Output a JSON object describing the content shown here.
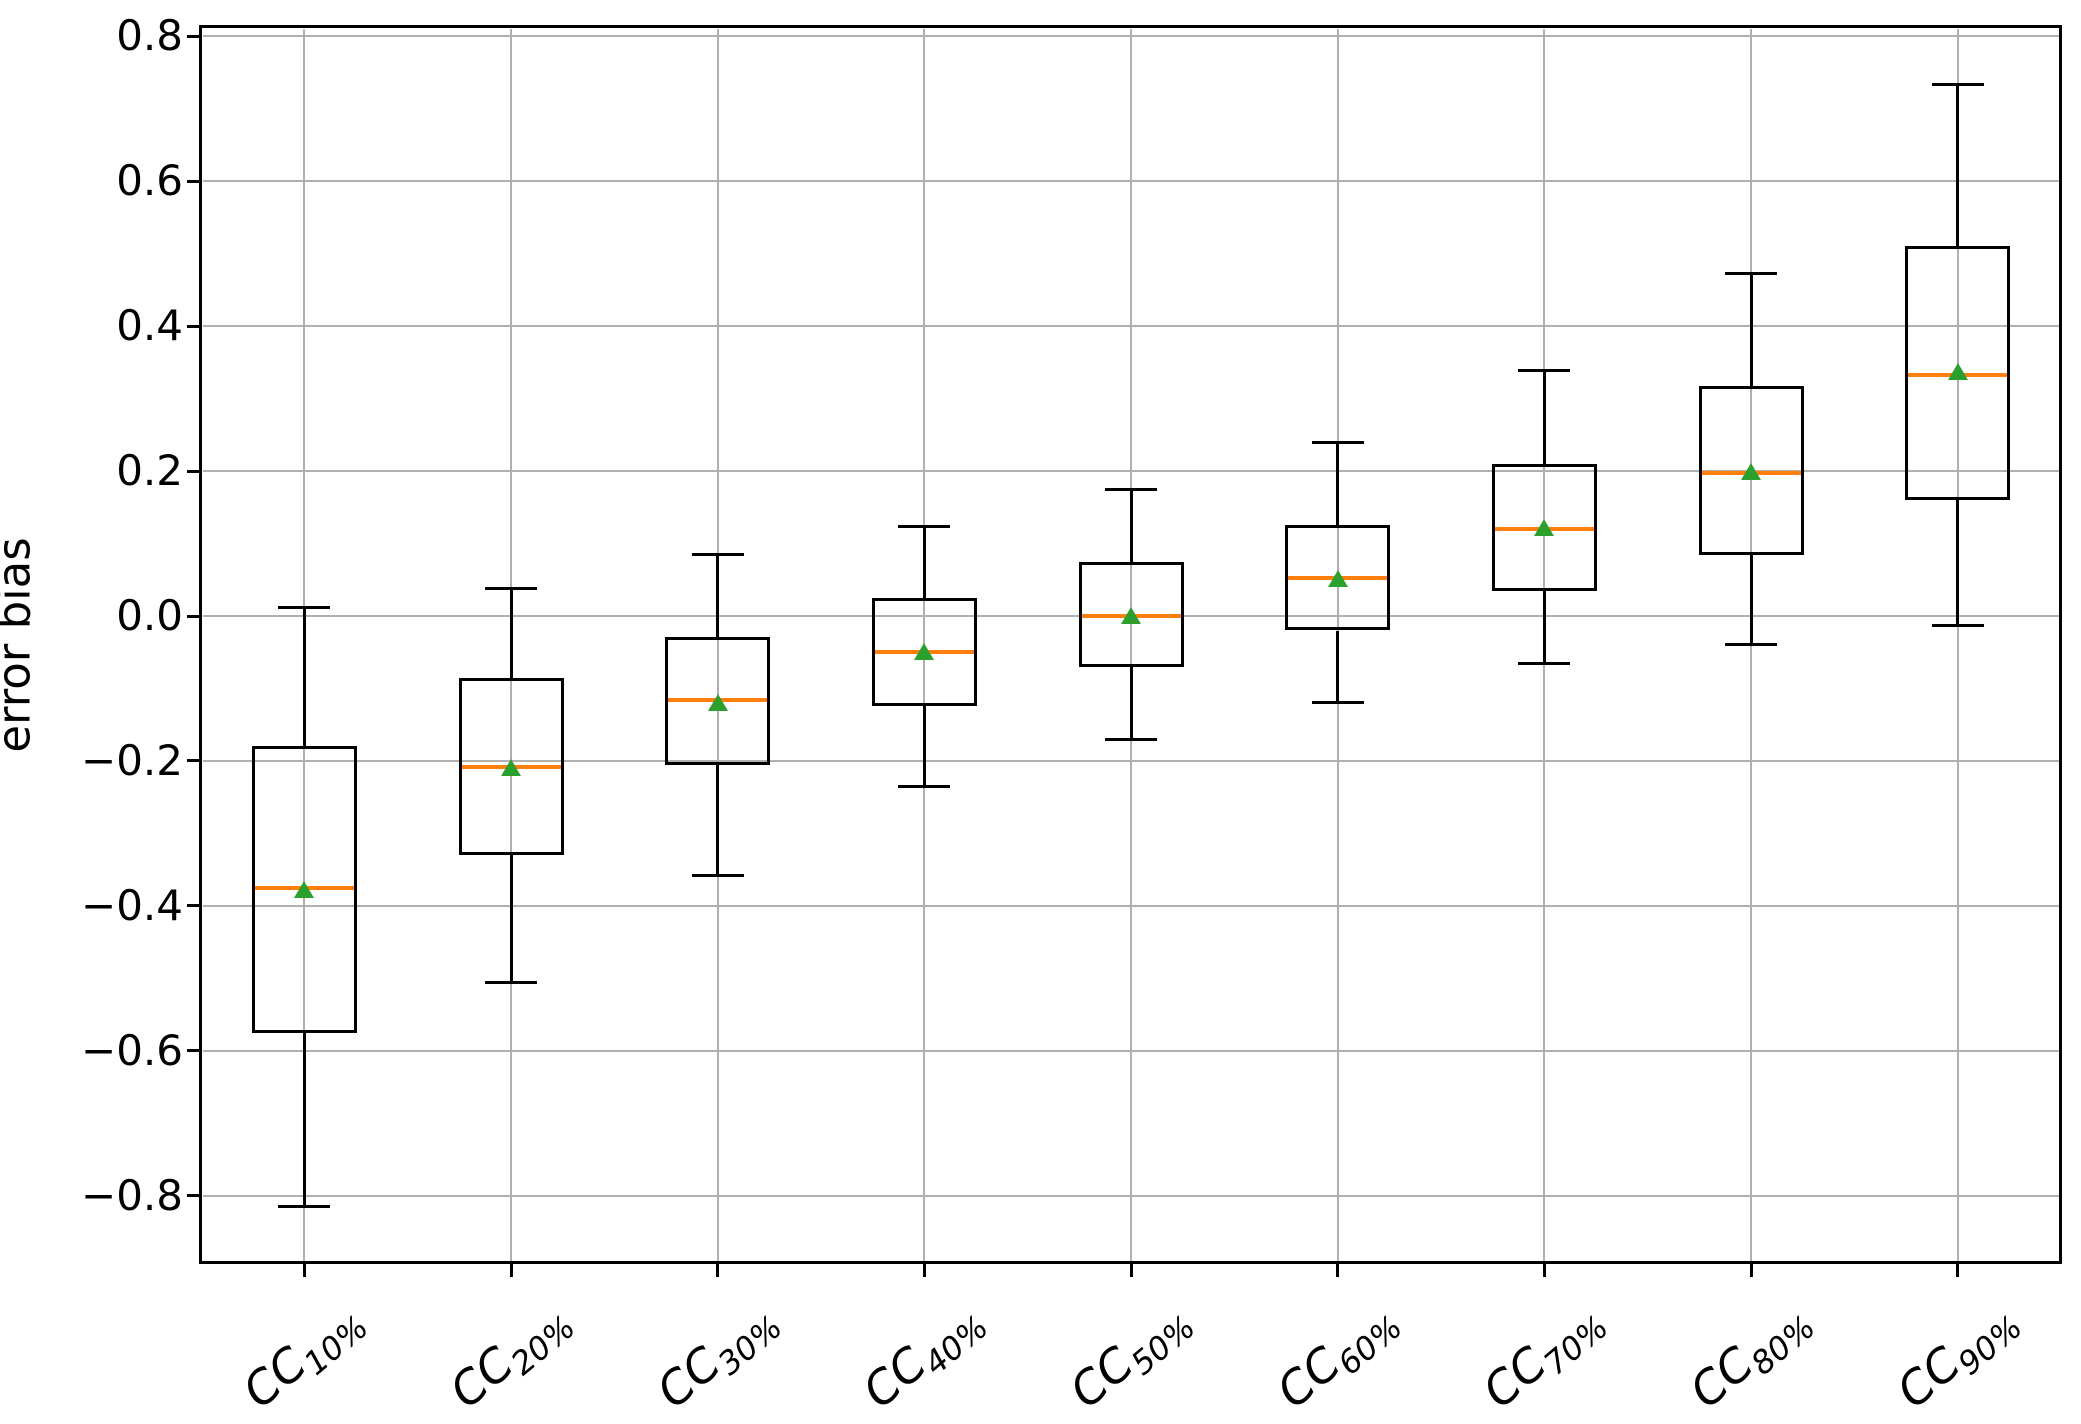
{
  "figure": {
    "background": "#ffffff"
  },
  "chart_data": {
    "type": "box",
    "title": "",
    "xlabel": "",
    "ylabel": "error bias",
    "ylim": [
      -0.8925,
      0.8125
    ],
    "yticks": [
      0.8,
      0.6,
      0.4,
      0.2,
      0.0,
      -0.2,
      -0.4,
      -0.6,
      -0.8
    ],
    "grid": true,
    "legend": "none",
    "x_tick_rotation_deg": 40,
    "categories": [
      {
        "label": "CC10%",
        "base": "CC",
        "sub": "10%"
      },
      {
        "label": "CC20%",
        "base": "CC",
        "sub": "20%"
      },
      {
        "label": "CC30%",
        "base": "CC",
        "sub": "30%"
      },
      {
        "label": "CC40%",
        "base": "CC",
        "sub": "40%"
      },
      {
        "label": "CC50%",
        "base": "CC",
        "sub": "50%"
      },
      {
        "label": "CC60%",
        "base": "CC",
        "sub": "60%"
      },
      {
        "label": "CC70%",
        "base": "CC",
        "sub": "70%"
      },
      {
        "label": "CC80%",
        "base": "CC",
        "sub": "80%"
      },
      {
        "label": "CC90%",
        "base": "CC",
        "sub": "90%"
      }
    ],
    "series": [
      {
        "name": "CC10%",
        "whislo": -0.815,
        "q1": -0.575,
        "med": -0.375,
        "q3": -0.18,
        "whishi": 0.012,
        "mean": -0.378
      },
      {
        "name": "CC20%",
        "whislo": -0.505,
        "q1": -0.33,
        "med": -0.208,
        "q3": -0.086,
        "whishi": 0.038,
        "mean": -0.21
      },
      {
        "name": "CC30%",
        "whislo": -0.358,
        "q1": -0.205,
        "med": -0.116,
        "q3": -0.029,
        "whishi": 0.085,
        "mean": -0.12
      },
      {
        "name": "CC40%",
        "whislo": -0.235,
        "q1": -0.124,
        "med": -0.049,
        "q3": 0.025,
        "whishi": 0.124,
        "mean": -0.05
      },
      {
        "name": "CC50%",
        "whislo": -0.17,
        "q1": -0.071,
        "med": 0.0,
        "q3": 0.074,
        "whishi": 0.174,
        "mean": 0.0
      },
      {
        "name": "CC60%",
        "whislo": -0.119,
        "q1": -0.02,
        "med": 0.052,
        "q3": 0.125,
        "whishi": 0.24,
        "mean": 0.051
      },
      {
        "name": "CC70%",
        "whislo": -0.066,
        "q1": 0.035,
        "med": 0.12,
        "q3": 0.21,
        "whishi": 0.339,
        "mean": 0.121
      },
      {
        "name": "CC80%",
        "whislo": -0.039,
        "q1": 0.084,
        "med": 0.197,
        "q3": 0.317,
        "whishi": 0.472,
        "mean": 0.198
      },
      {
        "name": "CC90%",
        "whislo": -0.013,
        "q1": 0.16,
        "med": 0.333,
        "q3": 0.51,
        "whishi": 0.733,
        "mean": 0.336
      }
    ],
    "colors": {
      "median": "#ff7f0e",
      "mean_marker": "#2ca02c",
      "box_line": "#000000",
      "grid": "#b0b0b0",
      "background": "#ffffff"
    }
  }
}
